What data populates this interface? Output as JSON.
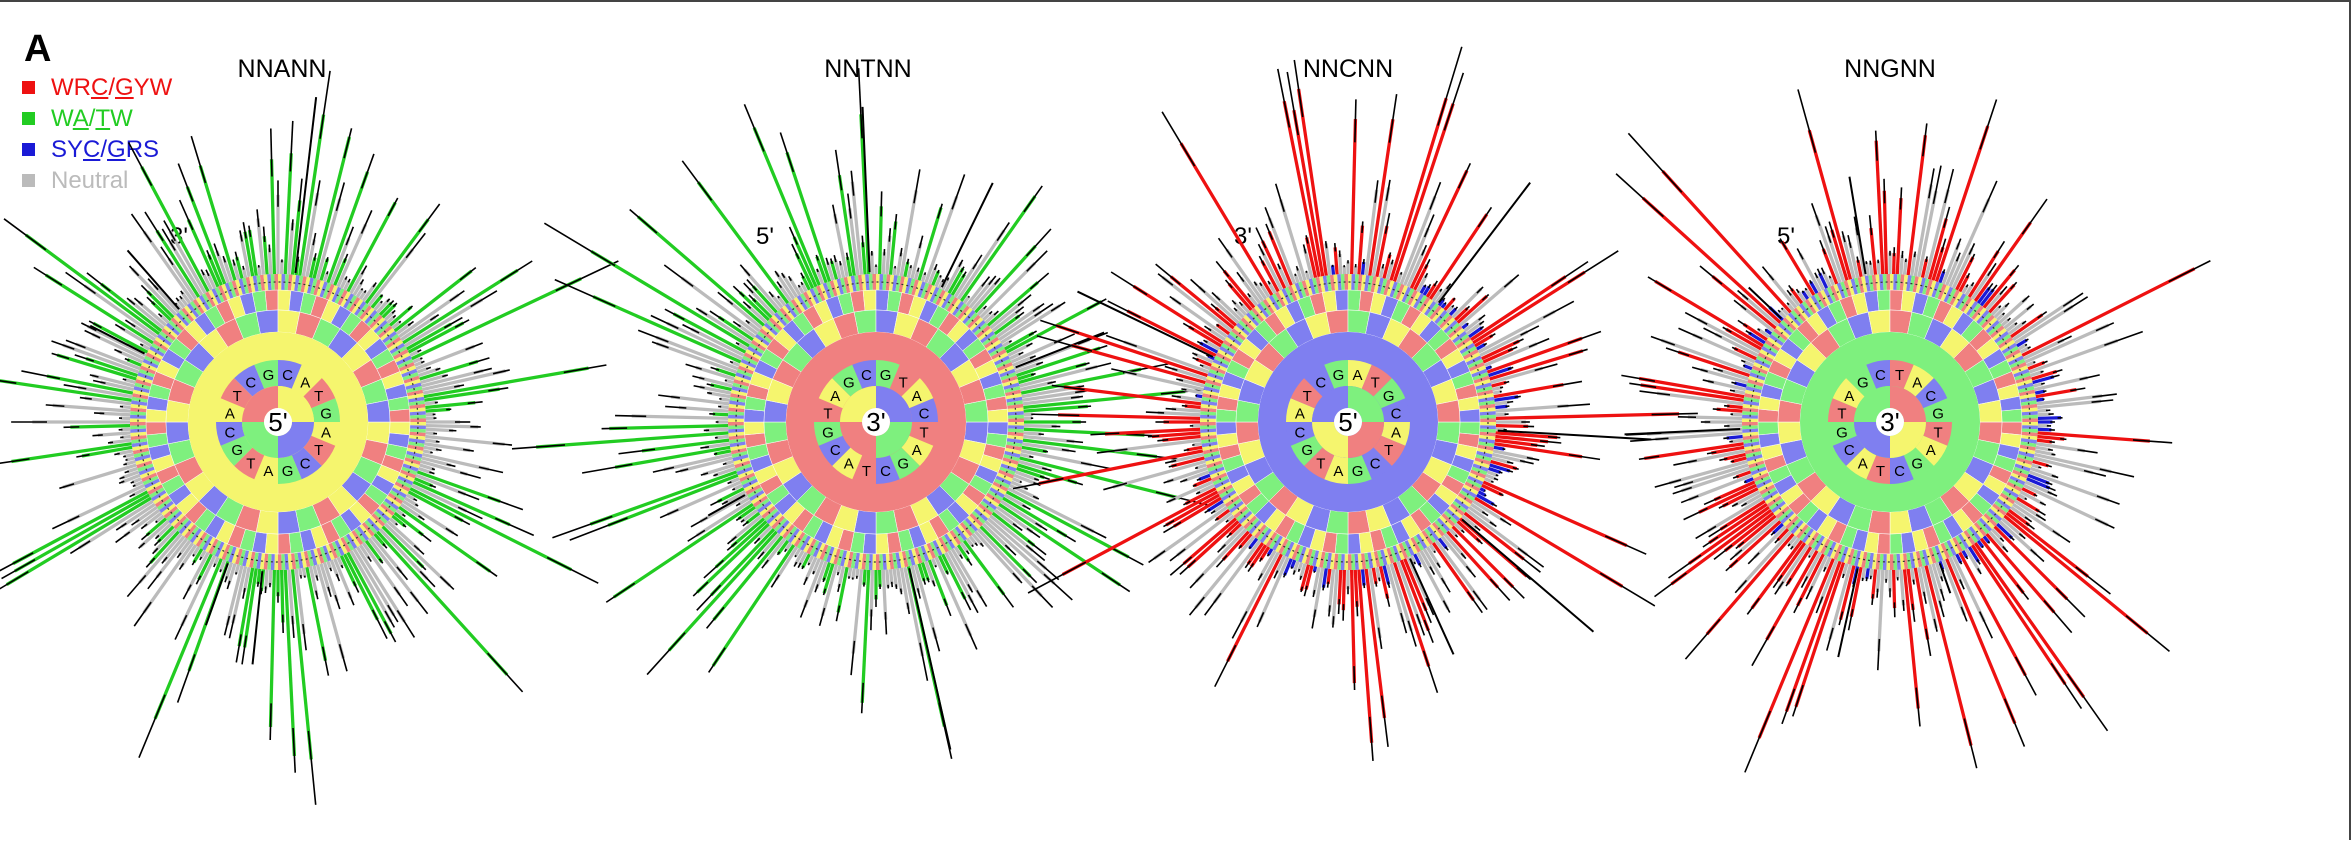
{
  "panel": {
    "letter": "A"
  },
  "legend": [
    {
      "name": "WRC/GYW",
      "pre": "WR",
      "u1": "C",
      "sep": "/",
      "u2": "G",
      "post": "YW",
      "color": "#ee1111"
    },
    {
      "name": "WA/TW",
      "pre": "W",
      "u1": "A",
      "sep": "/",
      "u2": "T",
      "post": "W",
      "color": "#22cc22"
    },
    {
      "name": "SYC/GRS",
      "pre": "SY",
      "u1": "C",
      "sep": "/",
      "u2": "G",
      "post": "RS",
      "color": "#1a1ad6"
    },
    {
      "name": "Neutral",
      "pre": "Neutral",
      "u1": "",
      "sep": "",
      "u2": "",
      "post": "",
      "color": "#bbbbbb"
    }
  ],
  "colors": {
    "A": "#f5f56e",
    "C": "#7f7ff0",
    "G": "#7ef07e",
    "T": "#f08080",
    "wrc": "#ee1111",
    "wa": "#22cc22",
    "syc": "#1a1ad6",
    "neutral": "#bbbbbb"
  },
  "chart_data": [
    {
      "type": "radial-bar",
      "title": "NNANN",
      "center_label": "5'",
      "end_label": "3'",
      "center_base": "A",
      "dominant_class": "WA/TW",
      "inner_ring": [
        "C",
        "A",
        "T",
        "G",
        "A",
        "T",
        "C",
        "G",
        "A",
        "T",
        "G",
        "C",
        "A",
        "T",
        "C",
        "G"
      ],
      "outer_ring_bases": [
        "A",
        "C",
        "G",
        "T"
      ]
    },
    {
      "type": "radial-bar",
      "title": "NNTNN",
      "center_label": "3'",
      "end_label": "5'",
      "center_base": "T",
      "dominant_class": "WA/TW",
      "inner_ring": [
        "G",
        "T",
        "A",
        "C",
        "T",
        "A",
        "G",
        "C",
        "T",
        "A",
        "C",
        "G",
        "T",
        "A",
        "G",
        "C"
      ],
      "outer_ring_bases": [
        "A",
        "C",
        "G",
        "T"
      ]
    },
    {
      "type": "radial-bar",
      "title": "NNCNN",
      "center_label": "5'",
      "end_label": "3'",
      "center_base": "C",
      "dominant_class": "WRC/GYW",
      "inner_ring": [
        "A",
        "T",
        "G",
        "C",
        "A",
        "T",
        "C",
        "G",
        "A",
        "T",
        "G",
        "C",
        "A",
        "T",
        "C",
        "G"
      ],
      "outer_ring_bases": [
        "A",
        "C",
        "G",
        "T"
      ]
    },
    {
      "type": "radial-bar",
      "title": "NNGNN",
      "center_label": "3'",
      "end_label": "5'",
      "center_base": "G",
      "dominant_class": "WRC/GYW",
      "inner_ring": [
        "T",
        "A",
        "C",
        "G",
        "T",
        "A",
        "G",
        "C",
        "T",
        "A",
        "C",
        "G",
        "T",
        "A",
        "G",
        "C"
      ],
      "outer_ring_bases": [
        "A",
        "C",
        "G",
        "T"
      ]
    }
  ]
}
